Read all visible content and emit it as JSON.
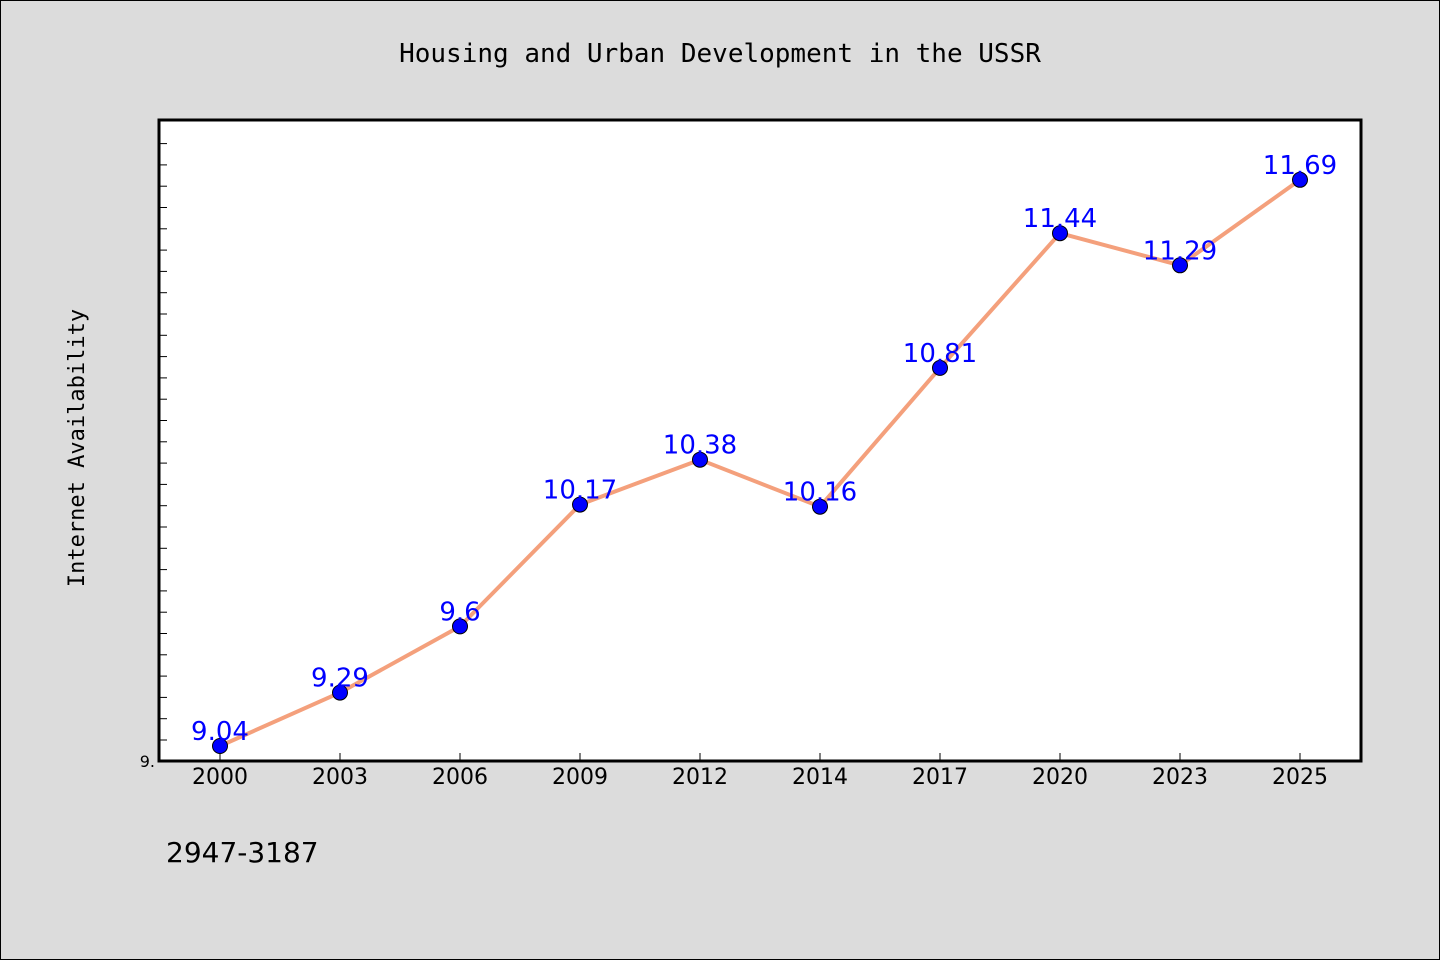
{
  "chart_data": {
    "type": "line",
    "title": "Housing and Urban Development in the USSR",
    "xlabel": "",
    "ylabel": "Internet Availability",
    "categories": [
      "2000",
      "2003",
      "2006",
      "2009",
      "2012",
      "2014",
      "2017",
      "2020",
      "2023",
      "2025"
    ],
    "series": [
      {
        "values": [
          9.04,
          9.29,
          9.6,
          10.17,
          10.38,
          10.16,
          10.81,
          11.44,
          11.29,
          11.69
        ]
      }
    ],
    "data_labels": [
      "9.04",
      "9.29",
      "9.6",
      "10.17",
      "10.38",
      "10.16",
      "10.81",
      "11.44",
      "11.29",
      "11.69"
    ],
    "ytick_labels": [
      "9."
    ],
    "ylim": [
      8.97,
      11.97
    ],
    "grid": false,
    "line_color": "#f4a07c",
    "marker_color": "#0000ff",
    "label_color": "#0000ff",
    "plot_background": "#ffffff",
    "figure_background": "#dcdcdc"
  },
  "footer": {
    "text": "2947-3187"
  }
}
